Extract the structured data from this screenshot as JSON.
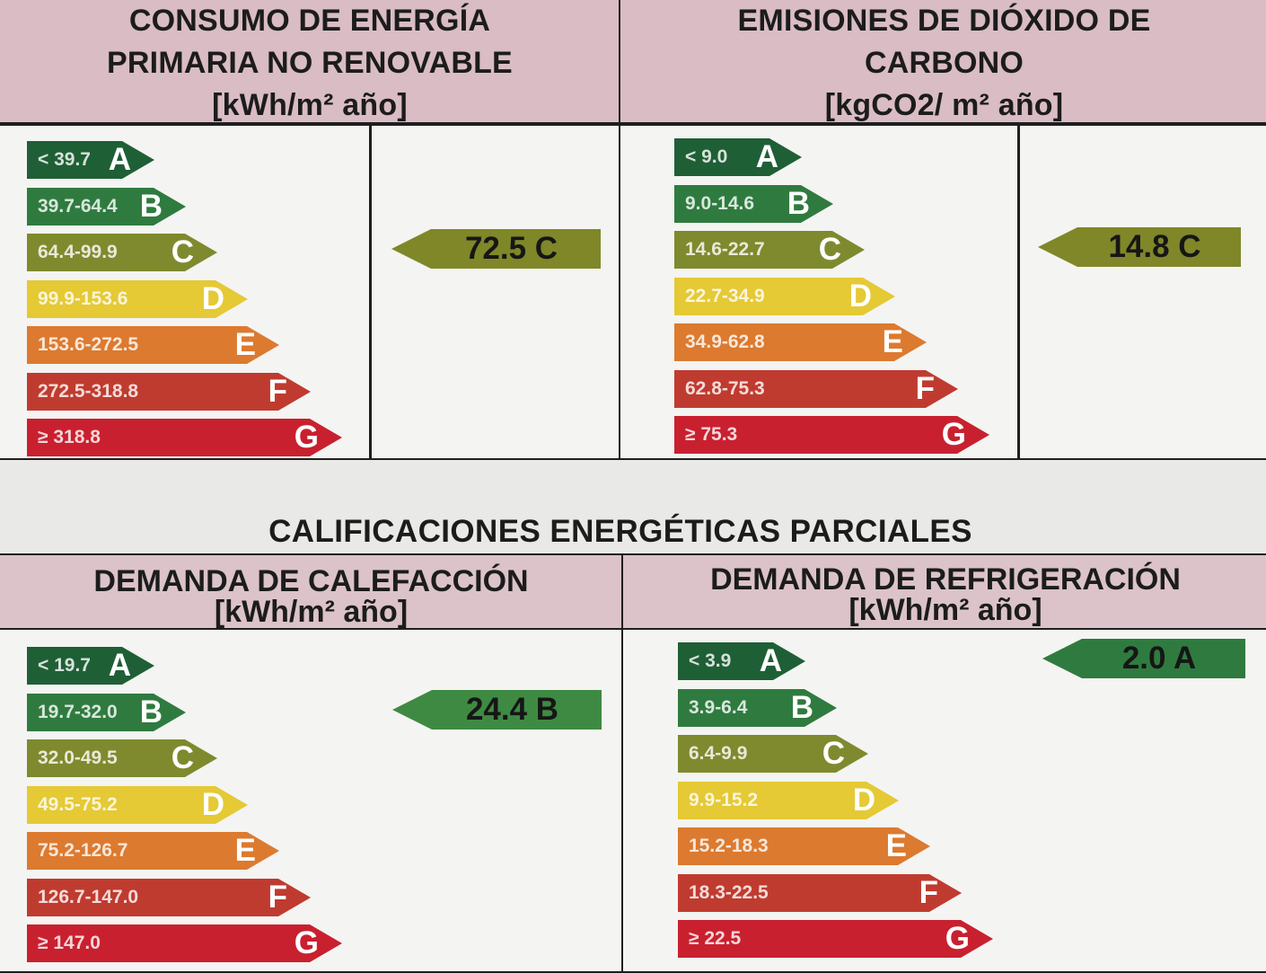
{
  "top": {
    "energy": {
      "title_line1": "CONSUMO DE ENERGÍA",
      "title_line2": "PRIMARIA NO RENOVABLE",
      "unit": "[kWh/m² año]",
      "ranges": [
        "< 39.7",
        "39.7-64.4",
        "64.4-99.9",
        "99.9-153.6",
        "153.6-272.5",
        "272.5-318.8",
        "≥ 318.8"
      ],
      "result": "72.5 C",
      "result_class": "C"
    },
    "co2": {
      "title_line1": "EMISIONES DE DIÓXIDO DE",
      "title_line2": "CARBONO",
      "unit": "[kgCO2/ m² año]",
      "ranges": [
        "< 9.0",
        "9.0-14.6",
        "14.6-22.7",
        "22.7-34.9",
        "34.9-62.8",
        "62.8-75.3",
        "≥ 75.3"
      ],
      "result": "14.8 C",
      "result_class": "C"
    }
  },
  "partial": {
    "section_title": "CALIFICACIONES ENERGÉTICAS PARCIALES",
    "heating": {
      "title": "DEMANDA DE CALEFACCIÓN",
      "unit": "[kWh/m² año]",
      "ranges": [
        "< 19.7",
        "19.7-32.0",
        "32.0-49.5",
        "49.5-75.2",
        "75.2-126.7",
        "126.7-147.0",
        "≥ 147.0"
      ],
      "result": "24.4 B",
      "result_class": "B"
    },
    "cooling": {
      "title": "DEMANDA DE REFRIGERACIÓN",
      "unit": "[kWh/m² año]",
      "ranges": [
        "< 3.9",
        "3.9-6.4",
        "6.4-9.9",
        "9.9-15.2",
        "15.2-18.3",
        "18.3-22.5",
        "≥ 22.5"
      ],
      "result": "2.0 A",
      "result_class": "A"
    }
  },
  "letters": [
    "A",
    "B",
    "C",
    "D",
    "E",
    "F",
    "G"
  ],
  "colors": {
    "A": "#1f5f36",
    "B": "#2f7b3f",
    "C": "#7f8a2e",
    "D": "#e5c935",
    "E": "#dc7a30",
    "F": "#c03b2f",
    "G": "#c9202f",
    "header_bg": "#d9bcc4",
    "result_A": "#2f7b3f",
    "result_B": "#3f8a43",
    "result_C": "#7f8728"
  }
}
